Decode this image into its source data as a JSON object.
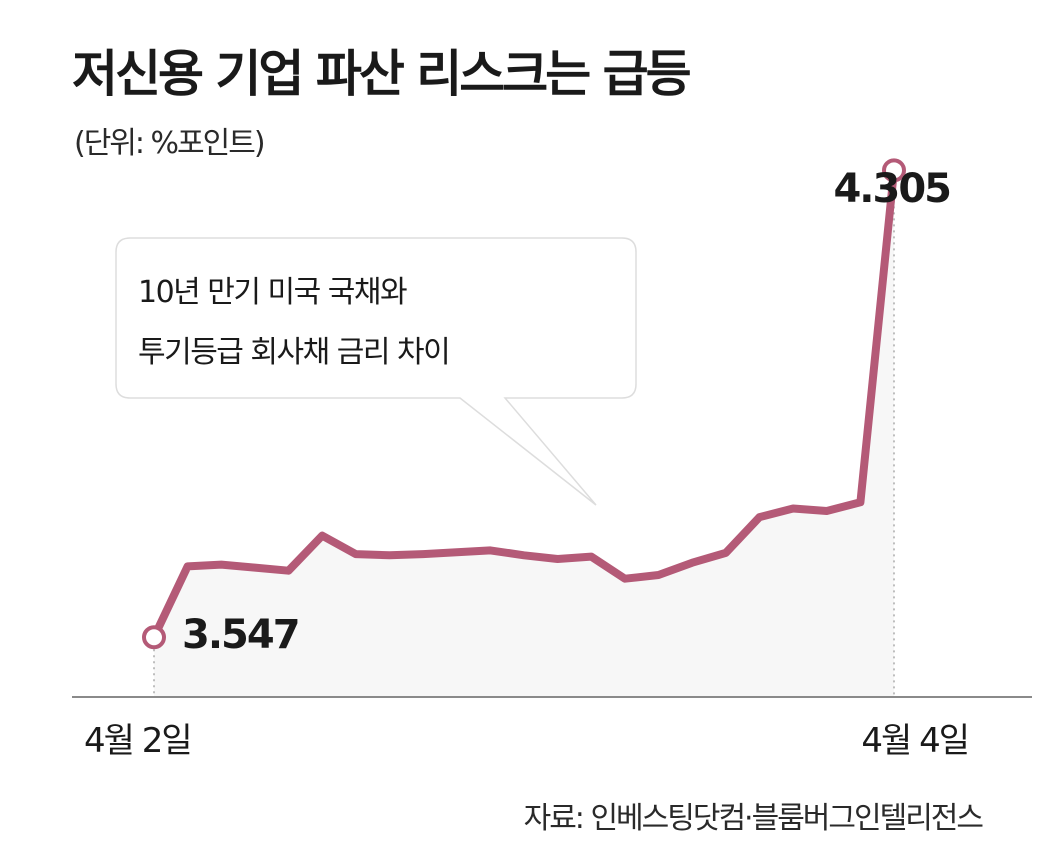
{
  "title": "저신용 기업 파산 리스크는 급등",
  "unit": "(단위: %포인트)",
  "source": "자료: 인베스팅닷컴·블룸버그인텔리전스",
  "annotation": [
    "10년 만기 미국 국채와",
    "투기등급 회사채 금리 차이"
  ],
  "colors": {
    "line": "#b45a77",
    "area": "#f7f7f7",
    "axis": "#8a8a8a",
    "text": "#1a1a1a"
  },
  "chart_data": {
    "type": "area",
    "grid": false,
    "x_labels": [
      "4월 2일",
      "4월 4일"
    ],
    "y_range": [
      3.45,
      4.45
    ],
    "start_value": "3.547",
    "end_value": "4.305",
    "values": [
      3.547,
      3.662,
      3.665,
      3.66,
      3.655,
      3.712,
      3.682,
      3.68,
      3.682,
      3.685,
      3.688,
      3.68,
      3.674,
      3.678,
      3.642,
      3.648,
      3.668,
      3.684,
      3.742,
      3.756,
      3.752,
      3.766,
      4.305
    ]
  }
}
